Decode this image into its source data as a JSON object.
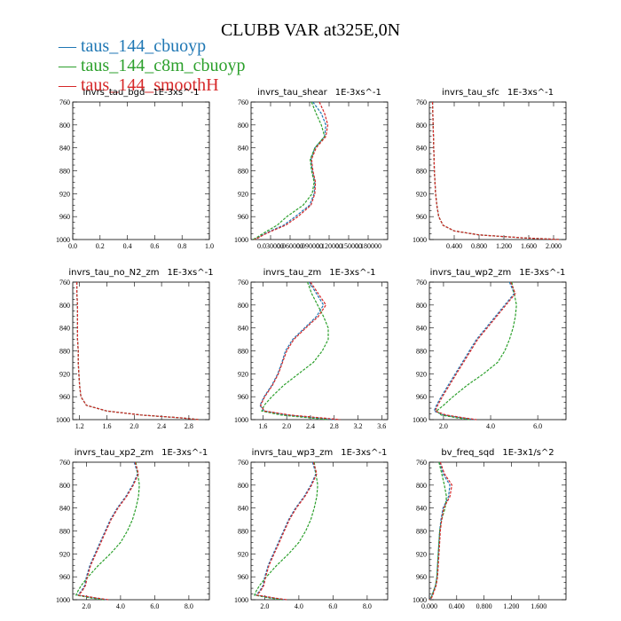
{
  "colors": {
    "cbuoyp": "#1f77b4",
    "c8m": "#2ca02c",
    "smoothH": "#d62728"
  },
  "chart_data": {
    "title": "CLUBB VAR at325E,0N",
    "legend": [
      {
        "label": "taus_144_cbuoyp",
        "color": "#1f77b4"
      },
      {
        "label": "taus_144_c8m_cbuoyp",
        "color": "#2ca02c"
      },
      {
        "label": "taus_144_smoothH",
        "color": "#d62728"
      }
    ],
    "y_levels": [
      760,
      780,
      800,
      820,
      840,
      860,
      880,
      900,
      920,
      940,
      960,
      975,
      985,
      992,
      997,
      1000
    ],
    "y_ticks": [
      760,
      800,
      840,
      880,
      920,
      960,
      1000
    ],
    "ylim": [
      760,
      1000
    ],
    "panels": [
      {
        "type": "line",
        "title": "invrs_tau_bgd",
        "units": "1E-3xs^-1",
        "xlim": [
          0.0,
          1.0
        ],
        "x_ticks": [
          0.0,
          0.2,
          0.4,
          0.6,
          0.8,
          1.0
        ],
        "x_tick_labels": [
          "0.0",
          "0.2",
          "0.4",
          "0.6",
          "0.8",
          "1.0"
        ],
        "series": []
      },
      {
        "type": "line",
        "title": "invrs_tau_shear",
        "units": "1E-3xs^-1",
        "xlim": [
          0.0,
          0.21
        ],
        "x_ticks": [
          0.03,
          0.06,
          0.09,
          0.12,
          0.15,
          0.18
        ],
        "x_tick_labels": [
          "0.030000",
          "0.060000",
          "0.090000",
          "0.120000",
          "0.150000",
          "0.180000"
        ],
        "series": [
          {
            "name": "taus_144_cbuoyp",
            "values": [
              0.095,
              0.108,
              0.115,
              0.113,
              0.098,
              0.092,
              0.094,
              0.098,
              0.097,
              0.09,
              0.068,
              0.05,
              0.03,
              0.018,
              0.01,
              0.004
            ]
          },
          {
            "name": "taus_144_c8m_cbuoyp",
            "values": [
              0.093,
              0.1,
              0.108,
              0.113,
              0.098,
              0.091,
              0.093,
              0.097,
              0.094,
              0.08,
              0.055,
              0.04,
              0.025,
              0.015,
              0.008,
              0.003
            ]
          },
          {
            "name": "taus_144_smoothH",
            "values": [
              0.105,
              0.113,
              0.118,
              0.115,
              0.1,
              0.093,
              0.095,
              0.099,
              0.098,
              0.092,
              0.072,
              0.053,
              0.032,
              0.019,
              0.011,
              0.005
            ]
          }
        ]
      },
      {
        "type": "line",
        "title": "invrs_tau_sfc",
        "units": "1E-3xs^-1",
        "xlim": [
          0.0,
          2.2
        ],
        "x_ticks": [
          0.4,
          0.8,
          1.2,
          1.6,
          2.0
        ],
        "x_tick_labels": [
          "0.400",
          "0.800",
          "1.200",
          "1.600",
          "2.000"
        ],
        "series": [
          {
            "name": "taus_144_cbuoyp",
            "values": [
              0.05,
              0.055,
              0.06,
              0.065,
              0.07,
              0.075,
              0.08,
              0.09,
              0.1,
              0.12,
              0.15,
              0.22,
              0.4,
              0.8,
              1.5,
              2.1
            ]
          },
          {
            "name": "taus_144_c8m_cbuoyp",
            "values": [
              0.05,
              0.055,
              0.06,
              0.065,
              0.07,
              0.075,
              0.08,
              0.09,
              0.1,
              0.12,
              0.15,
              0.22,
              0.4,
              0.8,
              1.5,
              2.1
            ]
          },
          {
            "name": "taus_144_smoothH",
            "values": [
              0.05,
              0.055,
              0.06,
              0.065,
              0.07,
              0.075,
              0.08,
              0.09,
              0.1,
              0.12,
              0.15,
              0.22,
              0.4,
              0.8,
              1.5,
              2.1
            ]
          }
        ]
      },
      {
        "type": "line",
        "title": "invrs_tau_no_N2_zm",
        "units": "1E-3xs^-1",
        "xlim": [
          1.1,
          3.1
        ],
        "x_ticks": [
          1.2,
          1.6,
          2.0,
          2.4,
          2.8
        ],
        "x_tick_labels": [
          "1.2",
          "1.6",
          "2.0",
          "2.4",
          "2.8"
        ],
        "series": [
          {
            "name": "taus_144_cbuoyp",
            "values": [
              1.16,
              1.16,
              1.17,
              1.17,
              1.17,
              1.17,
              1.18,
              1.18,
              1.19,
              1.2,
              1.22,
              1.3,
              1.6,
              2.1,
              2.7,
              2.95
            ]
          },
          {
            "name": "taus_144_c8m_cbuoyp",
            "values": [
              1.16,
              1.16,
              1.17,
              1.17,
              1.17,
              1.17,
              1.18,
              1.18,
              1.19,
              1.2,
              1.22,
              1.3,
              1.6,
              2.1,
              2.7,
              2.95
            ]
          },
          {
            "name": "taus_144_smoothH",
            "values": [
              1.16,
              1.16,
              1.17,
              1.17,
              1.17,
              1.17,
              1.18,
              1.18,
              1.19,
              1.2,
              1.22,
              1.3,
              1.6,
              2.1,
              2.7,
              2.95
            ]
          }
        ]
      },
      {
        "type": "line",
        "title": "invrs_tau_zm",
        "units": "1E-3xs^-1",
        "xlim": [
          1.4,
          3.7
        ],
        "x_ticks": [
          1.6,
          2.0,
          2.4,
          2.8,
          3.2,
          3.6
        ],
        "x_tick_labels": [
          "1.6",
          "2.0",
          "2.4",
          "2.8",
          "3.2",
          "3.6"
        ],
        "series": [
          {
            "name": "taus_144_cbuoyp",
            "values": [
              2.38,
              2.5,
              2.62,
              2.5,
              2.3,
              2.1,
              1.98,
              1.92,
              1.85,
              1.75,
              1.62,
              1.55,
              1.62,
              2.0,
              2.5,
              2.8
            ]
          },
          {
            "name": "taus_144_c8m_cbuoyp",
            "values": [
              2.35,
              2.42,
              2.52,
              2.62,
              2.7,
              2.7,
              2.6,
              2.45,
              2.2,
              1.95,
              1.75,
              1.62,
              1.58,
              1.9,
              2.4,
              2.7
            ]
          },
          {
            "name": "taus_144_smoothH",
            "values": [
              2.4,
              2.53,
              2.66,
              2.53,
              2.32,
              2.12,
              2.0,
              1.93,
              1.86,
              1.76,
              1.63,
              1.56,
              1.63,
              2.05,
              2.6,
              2.9
            ]
          }
        ]
      },
      {
        "type": "line",
        "title": "invrs_tau_wp2_zm",
        "units": "1E-3xs^-1",
        "xlim": [
          1.4,
          7.2
        ],
        "x_ticks": [
          2.0,
          4.0,
          6.0
        ],
        "x_tick_labels": [
          "2.0",
          "4.0",
          "6.0"
        ],
        "series": [
          {
            "name": "taus_144_cbuoyp",
            "values": [
              4.8,
              5.0,
              4.6,
              4.2,
              3.8,
              3.4,
              3.1,
              2.8,
              2.5,
              2.2,
              1.9,
              1.7,
              1.6,
              2.0,
              2.8,
              3.3
            ]
          },
          {
            "name": "taus_144_c8m_cbuoyp",
            "values": [
              4.9,
              5.0,
              5.1,
              5.05,
              4.95,
              4.8,
              4.6,
              4.3,
              3.7,
              3.0,
              2.4,
              2.0,
              1.7,
              1.9,
              2.6,
              3.1
            ]
          },
          {
            "name": "taus_144_smoothH",
            "values": [
              4.85,
              5.05,
              4.65,
              4.25,
              3.85,
              3.45,
              3.15,
              2.85,
              2.55,
              2.25,
              1.95,
              1.75,
              1.65,
              2.1,
              2.9,
              3.4
            ]
          }
        ]
      },
      {
        "type": "line",
        "title": "invrs_tau_xp2_zm",
        "units": "1E-3xs^-1",
        "xlim": [
          1.2,
          9.2
        ],
        "x_ticks": [
          2.0,
          4.0,
          6.0,
          8.0
        ],
        "x_tick_labels": [
          "2.0",
          "4.0",
          "6.0",
          "8.0"
        ],
        "series": [
          {
            "name": "taus_144_cbuoyp",
            "values": [
              4.8,
              5.0,
              4.7,
              4.3,
              3.8,
              3.4,
              3.1,
              2.8,
              2.5,
              2.2,
              2.0,
              1.9,
              1.7,
              1.5,
              2.5,
              3.2
            ]
          },
          {
            "name": "taus_144_c8m_cbuoyp",
            "values": [
              4.9,
              5.0,
              5.1,
              5.05,
              4.9,
              4.7,
              4.4,
              4.0,
              3.4,
              2.7,
              2.1,
              1.7,
              1.5,
              1.4,
              2.3,
              3.0
            ]
          },
          {
            "name": "taus_144_smoothH",
            "values": [
              4.85,
              5.05,
              4.75,
              4.35,
              3.85,
              3.45,
              3.15,
              2.85,
              2.55,
              2.25,
              2.05,
              1.95,
              1.75,
              1.55,
              2.6,
              3.3
            ]
          }
        ]
      },
      {
        "type": "line",
        "title": "invrs_tau_wp3_zm",
        "units": "1E-3xs^-1",
        "xlim": [
          1.2,
          9.2
        ],
        "x_ticks": [
          2.0,
          4.0,
          6.0,
          8.0
        ],
        "x_tick_labels": [
          "2.0",
          "4.0",
          "6.0",
          "8.0"
        ],
        "series": [
          {
            "name": "taus_144_cbuoyp",
            "values": [
              4.8,
              5.0,
              4.7,
              4.3,
              3.8,
              3.4,
              3.1,
              2.8,
              2.5,
              2.2,
              2.0,
              1.9,
              1.7,
              1.5,
              2.5,
              3.2
            ]
          },
          {
            "name": "taus_144_c8m_cbuoyp",
            "values": [
              4.9,
              5.0,
              5.1,
              5.05,
              4.9,
              4.7,
              4.4,
              4.0,
              3.4,
              2.7,
              2.1,
              1.7,
              1.5,
              1.4,
              2.3,
              3.0
            ]
          },
          {
            "name": "taus_144_smoothH",
            "values": [
              4.85,
              5.05,
              4.75,
              4.35,
              3.85,
              3.45,
              3.15,
              2.85,
              2.55,
              2.25,
              2.05,
              1.95,
              1.75,
              1.55,
              2.6,
              3.3
            ]
          }
        ]
      },
      {
        "type": "line",
        "title": "bv_freq_sqd",
        "units": "1E-3x1/s^2",
        "xlim": [
          0.0,
          2.0
        ],
        "x_ticks": [
          0.0,
          0.4,
          0.8,
          1.2,
          1.6
        ],
        "x_tick_labels": [
          "0.000",
          "0.400",
          "0.800",
          "1.200",
          "1.600"
        ],
        "series": [
          {
            "name": "taus_144_cbuoyp",
            "values": [
              0.15,
              0.2,
              0.3,
              0.28,
              0.2,
              0.17,
              0.15,
              0.14,
              0.13,
              0.12,
              0.11,
              0.09,
              0.06,
              0.04,
              0.02,
              0.0
            ]
          },
          {
            "name": "taus_144_c8m_cbuoyp",
            "values": [
              0.14,
              0.18,
              0.22,
              0.25,
              0.23,
              0.18,
              0.15,
              0.14,
              0.13,
              0.12,
              0.11,
              0.09,
              0.06,
              0.04,
              0.02,
              0.0
            ]
          },
          {
            "name": "taus_144_smoothH",
            "values": [
              0.16,
              0.22,
              0.33,
              0.3,
              0.21,
              0.18,
              0.16,
              0.15,
              0.14,
              0.13,
              0.12,
              0.1,
              0.07,
              0.05,
              0.03,
              0.0
            ]
          }
        ]
      }
    ]
  }
}
